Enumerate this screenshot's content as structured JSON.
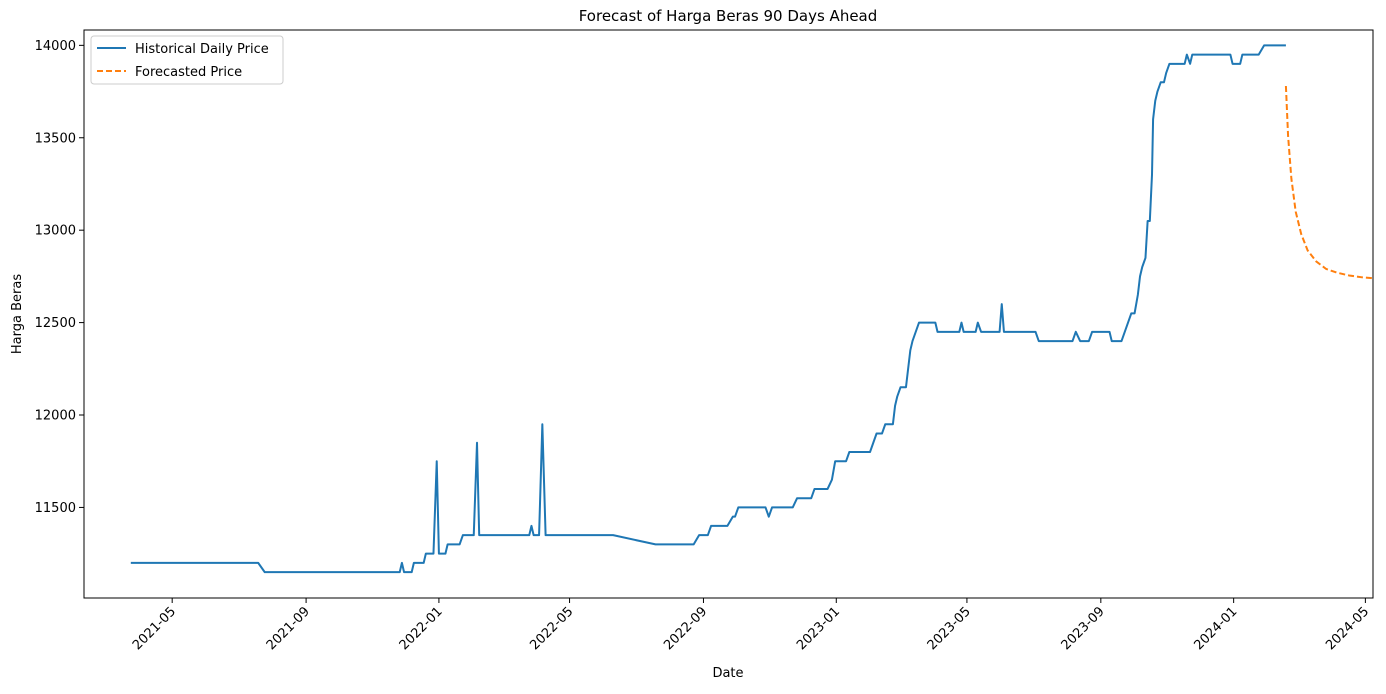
{
  "chart_data": {
    "type": "line",
    "title": "Forecast of Harga Beras 90 Days Ahead",
    "xlabel": "Date",
    "ylabel": "Harga Beras",
    "x_scale": "date",
    "xlim": [
      "2021-02-09",
      "2024-05-08"
    ],
    "ylim": [
      11010,
      14083
    ],
    "x_ticks": [
      "2021-05",
      "2021-09",
      "2022-01",
      "2022-05",
      "2022-09",
      "2023-01",
      "2023-05",
      "2023-09",
      "2024-01",
      "2024-05"
    ],
    "y_ticks": [
      11500,
      12000,
      12500,
      13000,
      13500,
      14000
    ],
    "grid": false,
    "legend_position": "top-left",
    "series": [
      {
        "name": "Historical Daily Price",
        "color": "#1f77b4",
        "style": "solid",
        "points": [
          [
            "2021-03-24",
            11200
          ],
          [
            "2021-07-19",
            11200
          ],
          [
            "2021-07-25",
            11150
          ],
          [
            "2021-11-26",
            11150
          ],
          [
            "2021-11-28",
            11200
          ],
          [
            "2021-11-30",
            11150
          ],
          [
            "2021-12-07",
            11150
          ],
          [
            "2021-12-09",
            11200
          ],
          [
            "2021-12-18",
            11200
          ],
          [
            "2021-12-20",
            11250
          ],
          [
            "2021-12-27",
            11250
          ],
          [
            "2021-12-30",
            11750
          ],
          [
            "2022-01-01",
            11250
          ],
          [
            "2022-01-07",
            11250
          ],
          [
            "2022-01-09",
            11300
          ],
          [
            "2022-01-20",
            11300
          ],
          [
            "2022-01-23",
            11350
          ],
          [
            "2022-02-02",
            11350
          ],
          [
            "2022-02-05",
            11850
          ],
          [
            "2022-02-07",
            11350
          ],
          [
            "2022-03-25",
            11350
          ],
          [
            "2022-03-27",
            11400
          ],
          [
            "2022-03-29",
            11350
          ],
          [
            "2022-04-03",
            11350
          ],
          [
            "2022-04-06",
            11950
          ],
          [
            "2022-04-09",
            11350
          ],
          [
            "2022-06-10",
            11350
          ],
          [
            "2022-07-19",
            11300
          ],
          [
            "2022-08-23",
            11300
          ],
          [
            "2022-08-28",
            11350
          ],
          [
            "2022-09-05",
            11350
          ],
          [
            "2022-09-08",
            11400
          ],
          [
            "2022-09-23",
            11400
          ],
          [
            "2022-09-28",
            11450
          ],
          [
            "2022-09-30",
            11450
          ],
          [
            "2022-10-03",
            11500
          ],
          [
            "2022-10-28",
            11500
          ],
          [
            "2022-10-31",
            11450
          ],
          [
            "2022-11-03",
            11500
          ],
          [
            "2022-11-22",
            11500
          ],
          [
            "2022-11-26",
            11550
          ],
          [
            "2022-12-09",
            11550
          ],
          [
            "2022-12-12",
            11600
          ],
          [
            "2022-12-24",
            11600
          ],
          [
            "2022-12-28",
            11650
          ],
          [
            "2022-12-31",
            11750
          ],
          [
            "2023-01-10",
            11750
          ],
          [
            "2023-01-13",
            11800
          ],
          [
            "2023-02-01",
            11800
          ],
          [
            "2023-02-04",
            11850
          ],
          [
            "2023-02-07",
            11900
          ],
          [
            "2023-02-12",
            11900
          ],
          [
            "2023-02-15",
            11950
          ],
          [
            "2023-02-22",
            11950
          ],
          [
            "2023-02-24",
            12050
          ],
          [
            "2023-02-26",
            12100
          ],
          [
            "2023-03-01",
            12150
          ],
          [
            "2023-03-06",
            12150
          ],
          [
            "2023-03-08",
            12250
          ],
          [
            "2023-03-10",
            12350
          ],
          [
            "2023-03-12",
            12400
          ],
          [
            "2023-03-15",
            12450
          ],
          [
            "2023-03-18",
            12500
          ],
          [
            "2023-04-02",
            12500
          ],
          [
            "2023-04-04",
            12450
          ],
          [
            "2023-04-24",
            12450
          ],
          [
            "2023-04-26",
            12500
          ],
          [
            "2023-04-28",
            12450
          ],
          [
            "2023-05-09",
            12450
          ],
          [
            "2023-05-11",
            12500
          ],
          [
            "2023-05-14",
            12450
          ],
          [
            "2023-05-31",
            12450
          ],
          [
            "2023-06-02",
            12600
          ],
          [
            "2023-06-04",
            12450
          ],
          [
            "2023-07-03",
            12450
          ],
          [
            "2023-07-06",
            12400
          ],
          [
            "2023-08-06",
            12400
          ],
          [
            "2023-08-09",
            12450
          ],
          [
            "2023-08-13",
            12400
          ],
          [
            "2023-08-21",
            12400
          ],
          [
            "2023-08-24",
            12450
          ],
          [
            "2023-09-09",
            12450
          ],
          [
            "2023-09-11",
            12400
          ],
          [
            "2023-09-20",
            12400
          ],
          [
            "2023-09-23",
            12450
          ],
          [
            "2023-09-26",
            12500
          ],
          [
            "2023-09-29",
            12550
          ],
          [
            "2023-10-02",
            12550
          ],
          [
            "2023-10-05",
            12650
          ],
          [
            "2023-10-07",
            12750
          ],
          [
            "2023-10-09",
            12800
          ],
          [
            "2023-10-12",
            12850
          ],
          [
            "2023-10-14",
            13050
          ],
          [
            "2023-10-16",
            13050
          ],
          [
            "2023-10-18",
            13300
          ],
          [
            "2023-10-19",
            13600
          ],
          [
            "2023-10-21",
            13700
          ],
          [
            "2023-10-23",
            13750
          ],
          [
            "2023-10-26",
            13800
          ],
          [
            "2023-10-29",
            13800
          ],
          [
            "2023-10-31",
            13850
          ],
          [
            "2023-11-03",
            13900
          ],
          [
            "2023-11-17",
            13900
          ],
          [
            "2023-11-19",
            13950
          ],
          [
            "2023-11-22",
            13900
          ],
          [
            "2023-11-24",
            13950
          ],
          [
            "2023-12-29",
            13950
          ],
          [
            "2023-12-31",
            13900
          ],
          [
            "2024-01-07",
            13900
          ],
          [
            "2024-01-09",
            13950
          ],
          [
            "2024-01-24",
            13950
          ],
          [
            "2024-01-29",
            14000
          ],
          [
            "2024-02-18",
            14000
          ]
        ]
      },
      {
        "name": "Forecasted Price",
        "color": "#ff7f0e",
        "style": "dashed",
        "points": [
          [
            "2024-02-18",
            13780
          ],
          [
            "2024-02-20",
            13510
          ],
          [
            "2024-02-23",
            13280
          ],
          [
            "2024-02-27",
            13100
          ],
          [
            "2024-03-03",
            12980
          ],
          [
            "2024-03-09",
            12890
          ],
          [
            "2024-03-17",
            12830
          ],
          [
            "2024-03-26",
            12790
          ],
          [
            "2024-04-05",
            12770
          ],
          [
            "2024-04-16",
            12755
          ],
          [
            "2024-04-28",
            12745
          ],
          [
            "2024-05-08",
            12740
          ]
        ]
      }
    ]
  }
}
